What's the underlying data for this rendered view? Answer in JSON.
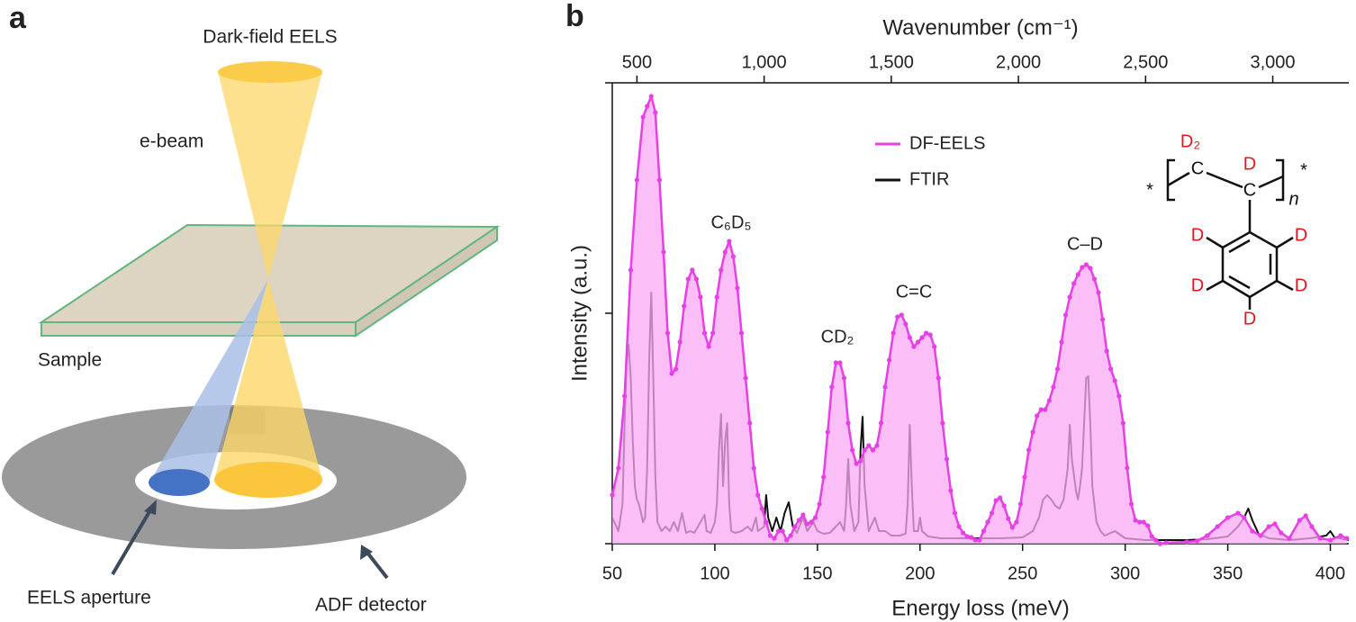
{
  "panel_labels": [
    "a",
    "b"
  ],
  "diagram": {
    "title": "Dark-field EELS",
    "beam": "e-beam",
    "sample": "Sample",
    "aperture": "EELS aperture",
    "detector": "ADF detector"
  },
  "structure": {
    "labels": [
      "D₂",
      "C",
      "D",
      "C",
      "n",
      "*",
      "*",
      "D",
      "D",
      "D",
      "D",
      "D"
    ]
  },
  "chart_data": {
    "type": "line",
    "xlabel": "Energy loss (meV)",
    "x2label": "Wavenumber (cm⁻¹)",
    "ylabel": "Intensity (a.u.)",
    "xlim": [
      50,
      409
    ],
    "xticks": [
      50,
      100,
      150,
      200,
      250,
      300,
      350,
      400
    ],
    "x2lim": [
      403,
      3299
    ],
    "x2ticks": [
      500,
      {
        "value": 1000,
        "label": "1,000"
      },
      {
        "value": 1500,
        "label": "1,500"
      },
      {
        "value": 2000,
        "label": "2,000"
      },
      {
        "value": 2500,
        "label": "2,500"
      },
      {
        "value": 3000,
        "label": "3,000"
      }
    ],
    "ylim": [
      0,
      512
    ],
    "yticks": [
      0,
      256,
      512
    ],
    "annotations": [
      "C₆D₅",
      "CD₂",
      "C=C",
      "C–D"
    ],
    "series": [
      {
        "name": "FTIR",
        "color": "#111111",
        "x": [
          50,
          53,
          55,
          56,
          57,
          58,
          59,
          60,
          61,
          62,
          63,
          64,
          65,
          66,
          67,
          68,
          69,
          70,
          71,
          72,
          74,
          76,
          78,
          80,
          82,
          84,
          86,
          88,
          90,
          93,
          95,
          96,
          98,
          100,
          101,
          102,
          103,
          104,
          105,
          106,
          107,
          108,
          110,
          113,
          116,
          118,
          120,
          121,
          124,
          125,
          126,
          128,
          130,
          132,
          134,
          136,
          138,
          140,
          143,
          145,
          148,
          150,
          153,
          156,
          159,
          161,
          163,
          164,
          165,
          166,
          168,
          170,
          171,
          172,
          173,
          175,
          177,
          178,
          180,
          183,
          186,
          190,
          193,
          194,
          195,
          196,
          197,
          199,
          200,
          201,
          204,
          210,
          220,
          230,
          240,
          250,
          255,
          258,
          260,
          262,
          264,
          266,
          268,
          270,
          272,
          273,
          274,
          276,
          277,
          278,
          279,
          280,
          281,
          282,
          283,
          284,
          286,
          288,
          290,
          295,
          300,
          310,
          320,
          330,
          340,
          350,
          355,
          358,
          360,
          362,
          365,
          370,
          380,
          390,
          398,
          400,
          402,
          409
        ],
        "values": [
          29,
          14,
          44,
          134,
          204,
          221,
          184,
          114,
          64,
          49,
          44,
          34,
          24,
          29,
          84,
          204,
          279,
          184,
          74,
          24,
          14,
          19,
          14,
          24,
          14,
          34,
          12,
          14,
          12,
          24,
          32,
          14,
          12,
          24,
          44,
          104,
          144,
          64,
          114,
          134,
          44,
          14,
          12,
          14,
          19,
          14,
          29,
          14,
          19,
          54,
          29,
          14,
          29,
          14,
          34,
          46,
          19,
          12,
          29,
          14,
          24,
          14,
          11,
          12,
          19,
          24,
          14,
          44,
          94,
          44,
          14,
          24,
          104,
          141,
          64,
          14,
          24,
          29,
          14,
          14,
          9,
          9,
          11,
          44,
          132,
          64,
          14,
          14,
          29,
          14,
          8,
          6,
          6,
          6,
          6,
          7,
          14,
          29,
          49,
          54,
          49,
          42,
          39,
          49,
          84,
          132,
          94,
          59,
          49,
          64,
          84,
          134,
          184,
          186,
          134,
          64,
          24,
          14,
          9,
          14,
          6,
          4,
          4,
          4,
          5,
          8,
          19,
          29,
          39,
          26,
          11,
          6,
          4,
          6,
          9,
          14,
          7,
          4
        ]
      },
      {
        "name": "DF-EELS",
        "color": "#e83fe6",
        "fill": "#f9a8f4",
        "markers": true,
        "x": [
          50,
          53,
          56,
          59,
          62,
          65,
          67,
          69,
          71,
          73,
          75,
          77,
          79,
          81,
          83,
          85,
          87,
          89,
          91,
          93,
          95,
          97,
          99,
          101,
          103,
          105,
          107,
          109,
          111,
          113,
          115,
          117,
          119,
          121,
          123,
          125,
          127,
          129,
          131,
          133,
          135,
          137,
          139,
          141,
          143,
          145,
          147,
          149,
          151,
          153,
          155,
          157,
          159,
          161,
          163,
          165,
          167,
          169,
          171,
          173,
          175,
          177,
          179,
          181,
          183,
          185,
          187,
          189,
          191,
          193,
          195,
          197,
          199,
          201,
          203,
          205,
          207,
          209,
          211,
          213,
          215,
          217,
          219,
          221,
          223,
          225,
          227,
          229,
          231,
          233,
          235,
          237,
          239,
          241,
          243,
          245,
          247,
          249,
          251,
          253,
          255,
          257,
          259,
          261,
          263,
          265,
          267,
          269,
          271,
          273,
          275,
          277,
          279,
          281,
          283,
          285,
          287,
          289,
          291,
          293,
          295,
          297,
          299,
          301,
          303,
          305,
          307,
          309,
          311,
          313,
          315,
          317,
          320,
          330,
          335,
          340,
          345,
          350,
          355,
          358,
          362,
          366,
          370,
          373,
          376,
          380,
          385,
          388,
          391,
          395,
          400,
          405,
          408
        ],
        "values": [
          54,
          84,
          164,
          304,
          404,
          474,
          486,
          497,
          479,
          404,
          324,
          234,
          189,
          194,
          224,
          264,
          294,
          304,
          294,
          274,
          234,
          219,
          234,
          274,
          304,
          324,
          336,
          319,
          284,
          234,
          184,
          134,
          84,
          54,
          39,
          24,
          9,
          6,
          14,
          14,
          4,
          9,
          19,
          26,
          32,
          22,
          24,
          29,
          44,
          74,
          124,
          174,
          201,
          201,
          184,
          134,
          104,
          89,
          92,
          104,
          109,
          104,
          109,
          134,
          174,
          204,
          234,
          252,
          254,
          244,
          229,
          219,
          224,
          229,
          234,
          232,
          219,
          184,
          134,
          94,
          59,
          34,
          19,
          12,
          8,
          7,
          4,
          4,
          14,
          24,
          34,
          48,
          51,
          42,
          28,
          18,
          24,
          44,
          74,
          104,
          124,
          142,
          149,
          149,
          159,
          174,
          194,
          224,
          254,
          274,
          289,
          299,
          307,
          310,
          306,
          294,
          279,
          249,
          214,
          194,
          181,
          164,
          134,
          84,
          44,
          26,
          24,
          24,
          20,
          8,
          4,
          0,
          1,
          2,
          3,
          9,
          19,
          29,
          34,
          29,
          14,
          9,
          19,
          22,
          12,
          6,
          26,
          31,
          19,
          6,
          4,
          9,
          6
        ]
      }
    ]
  }
}
